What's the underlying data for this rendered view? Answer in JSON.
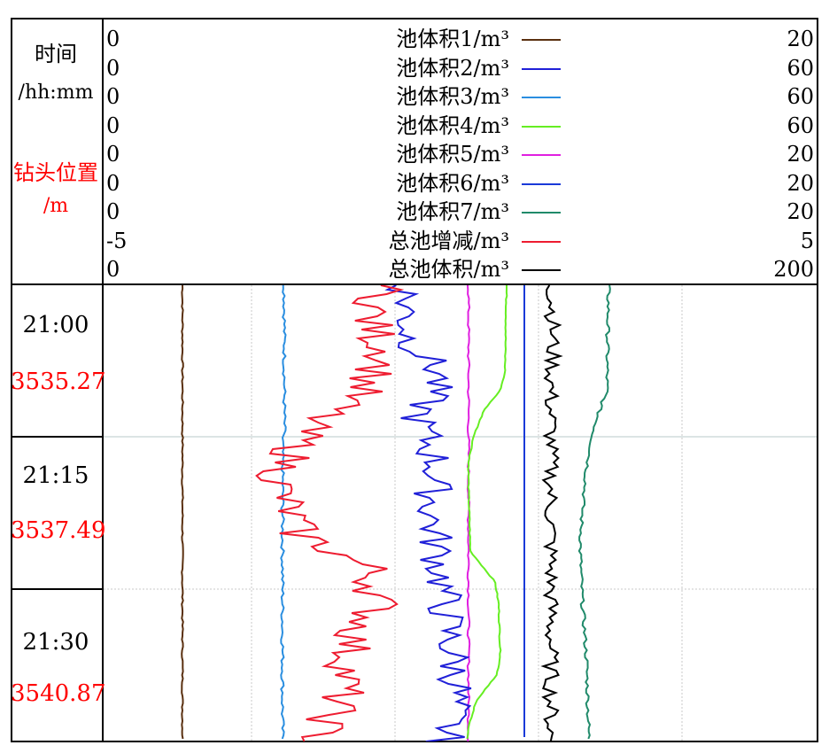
{
  "header": {
    "time_label": "时间",
    "time_unit": "/hh:mm",
    "depth_label": "钻头位置",
    "depth_unit": "/m"
  },
  "chart_data": {
    "type": "line",
    "y_axis": {
      "ticks": [
        {
          "time": "21:00",
          "depth": "3535.27"
        },
        {
          "time": "21:15",
          "depth": "3537.49"
        },
        {
          "time": "21:30",
          "depth": "3540.87"
        }
      ]
    },
    "grid": true,
    "series": [
      {
        "name": "池体积1/m³",
        "min": "0",
        "max": "20",
        "color": "#5a3010"
      },
      {
        "name": "池体积2/m³",
        "min": "0",
        "max": "60",
        "color": "#2020d8"
      },
      {
        "name": "池体积3/m³",
        "min": "0",
        "max": "60",
        "color": "#2a8ee0"
      },
      {
        "name": "池体积4/m³",
        "min": "0",
        "max": "60",
        "color": "#66ee22"
      },
      {
        "name": "池体积5/m³",
        "min": "0",
        "max": "20",
        "color": "#e020e0"
      },
      {
        "name": "池体积6/m³",
        "min": "0",
        "max": "20",
        "color": "#1a3ad8"
      },
      {
        "name": "池体积7/m³",
        "min": "0",
        "max": "20",
        "color": "#208a6a"
      },
      {
        "name": "总池增减/m³",
        "min": "-5",
        "max": "5",
        "color": "#ee1c30"
      },
      {
        "name": "总池体积/m³",
        "min": "0",
        "max": "200",
        "color": "#000000"
      }
    ]
  }
}
